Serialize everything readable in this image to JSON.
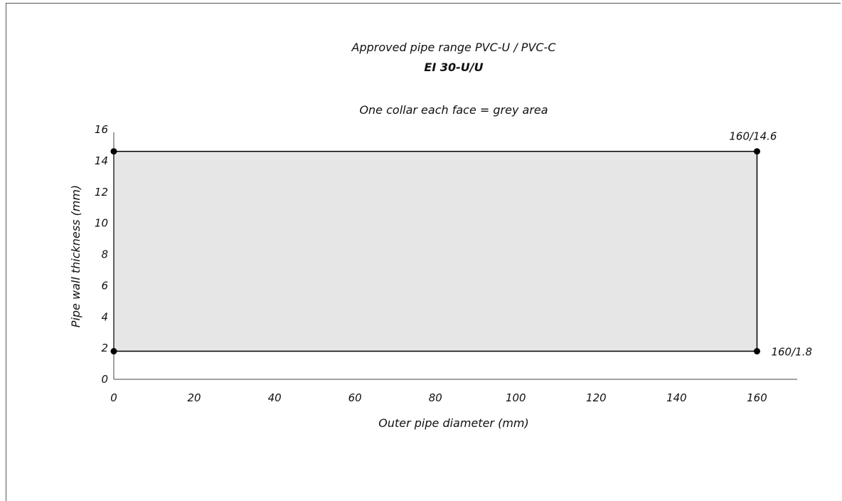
{
  "chart_data": {
    "type": "area",
    "title": "Approved pipe range PVC-U / PVC-C",
    "subtitle": "EI 30-U/U",
    "annotation": "One collar each face = grey area",
    "xlabel": "Outer pipe diameter (mm)",
    "ylabel": "Pipe wall thickness (mm)",
    "xlim": [
      0,
      170
    ],
    "ylim": [
      0,
      16
    ],
    "x_ticks": [
      0,
      20,
      40,
      60,
      80,
      100,
      120,
      140,
      160
    ],
    "y_ticks": [
      0,
      2,
      4,
      6,
      8,
      10,
      12,
      14,
      16
    ],
    "grid": false,
    "region": {
      "x": [
        0,
        160
      ],
      "y": [
        1.8,
        14.6
      ],
      "fill": "#e6e6e6",
      "stroke": "#000000"
    },
    "points": [
      {
        "x": 0,
        "y": 14.6,
        "label": ""
      },
      {
        "x": 160,
        "y": 14.6,
        "label": "160/14.6"
      },
      {
        "x": 0,
        "y": 1.8,
        "label": ""
      },
      {
        "x": 160,
        "y": 1.8,
        "label": "160/1.8"
      }
    ]
  }
}
